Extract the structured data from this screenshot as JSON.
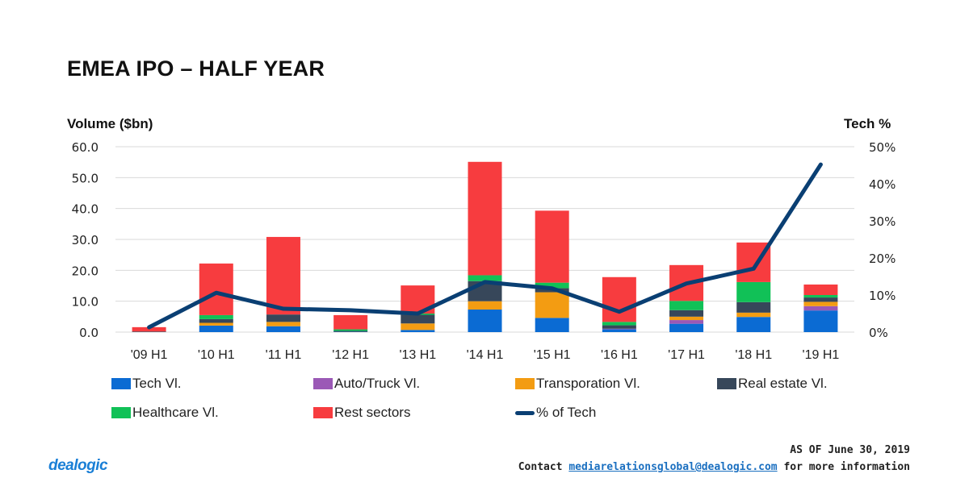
{
  "title": "EMEA IPO – HALF YEAR",
  "left_axis_title": "Volume ($bn)",
  "right_axis_title": "Tech %",
  "footer": {
    "as_of": "AS OF June 30, 2019",
    "contact_prefix": "Contact",
    "email": "mediarelationsglobal@dealogic.com",
    "contact_suffix": "for more information",
    "logo": "dealogic"
  },
  "colors": {
    "tech": "#0b6bd3",
    "auto": "#9b59b6",
    "transport": "#f39c12",
    "realestate": "#37475a",
    "healthcare": "#11c157",
    "rest": "#f73c3f",
    "line": "#0a3f73",
    "grid": "#d9d9d9"
  },
  "chart_data": {
    "type": "bar",
    "stacked": true,
    "title": "EMEA IPO – HALF YEAR",
    "xlabel": "",
    "ylabel": "Volume ($bn)",
    "y2label": "Tech %",
    "ylim": [
      0,
      60
    ],
    "y2lim": [
      0,
      50
    ],
    "yticks": [
      "0.0",
      "10.0",
      "20.0",
      "30.0",
      "40.0",
      "50.0",
      "60.0"
    ],
    "y2ticks": [
      "0%",
      "10%",
      "20%",
      "30%",
      "40%",
      "50%"
    ],
    "grid": true,
    "legend_position": "bottom",
    "categories": [
      "'09 H1",
      "'10 H1",
      "'11 H1",
      "'12 H1",
      "'13 H1",
      "'14 H1",
      "'15 H1",
      "'16 H1",
      "'17 H1",
      "'18 H1",
      "'19 H1"
    ],
    "series": [
      {
        "name": "Tech Vl.",
        "key": "tech",
        "values": [
          0.0,
          2.1,
          1.9,
          0.1,
          0.7,
          7.3,
          4.6,
          0.9,
          2.7,
          4.9,
          7.0
        ]
      },
      {
        "name": "Auto/Truck Vl.",
        "key": "auto",
        "values": [
          0.0,
          0.0,
          0.0,
          0.0,
          0.0,
          0.0,
          0.0,
          0.2,
          1.2,
          0.0,
          1.4
        ]
      },
      {
        "name": "Transporation Vl.",
        "key": "transport",
        "values": [
          0.0,
          0.9,
          1.4,
          0.0,
          2.1,
          2.7,
          8.3,
          0.0,
          1.1,
          1.4,
          1.4
        ]
      },
      {
        "name": "Real estate Vl.",
        "key": "realestate",
        "values": [
          0.2,
          1.2,
          2.4,
          0.3,
          2.8,
          6.5,
          1.3,
          1.1,
          2.1,
          3.4,
          1.4
        ]
      },
      {
        "name": "Healthcare Vl.",
        "key": "healthcare",
        "values": [
          0.0,
          1.3,
          0.0,
          0.5,
          0.4,
          1.9,
          1.8,
          1.1,
          3.0,
          6.5,
          0.8
        ]
      },
      {
        "name": "Rest sectors",
        "key": "rest",
        "values": [
          1.4,
          16.7,
          25.1,
          4.6,
          9.1,
          36.7,
          23.3,
          14.5,
          11.6,
          12.8,
          3.4
        ]
      }
    ],
    "line_series": {
      "name": "% of Tech",
      "key": "line",
      "axis": "right",
      "values": [
        1.3,
        10.6,
        6.3,
        5.9,
        5.0,
        13.5,
        11.8,
        5.5,
        13.1,
        17.1,
        45.2
      ]
    }
  }
}
